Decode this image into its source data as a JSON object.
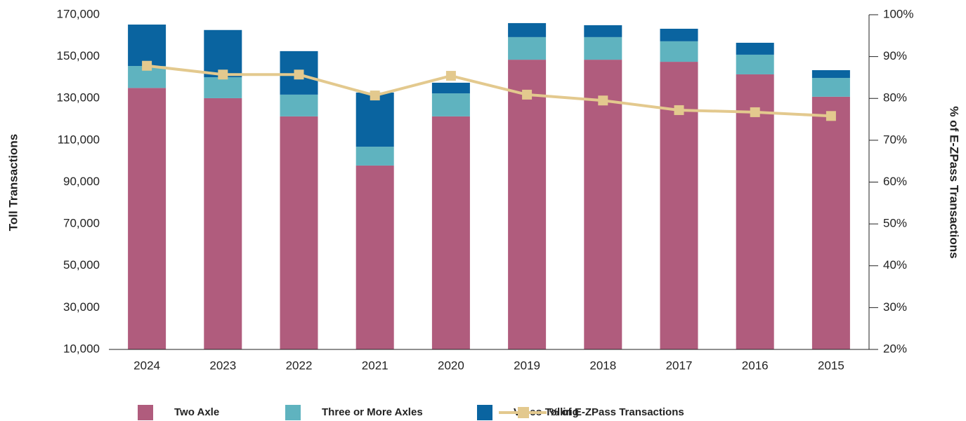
{
  "chart_data": {
    "type": "stacked-bar-line",
    "y_label": "Toll Transactions",
    "y2_label": "% of E-ZPass Transactions",
    "categories": [
      "2024",
      "2023",
      "2022",
      "2021",
      "2020",
      "2019",
      "2018",
      "2017",
      "2016",
      "2015"
    ],
    "series": [
      {
        "name": "Two Axle",
        "color": "#b05c7d",
        "type": "bar",
        "values": [
          135000,
          130100,
          121400,
          97900,
          121400,
          148500,
          148500,
          147500,
          141500,
          130800
        ]
      },
      {
        "name": "Three or More Axles",
        "color": "#5fb3bf",
        "type": "bar",
        "values": [
          10500,
          10000,
          10400,
          9000,
          11000,
          10800,
          10800,
          9800,
          9400,
          9000
        ]
      },
      {
        "name": "Video Tolling",
        "color": "#0a64a0",
        "type": "bar",
        "values": [
          19800,
          22600,
          20800,
          25900,
          5100,
          6700,
          5700,
          6000,
          5700,
          3700
        ]
      },
      {
        "name": "% of E-ZPass Transactions",
        "color": "#e3c98e",
        "type": "line",
        "axis": "y2",
        "values": [
          87.8,
          85.7,
          85.7,
          80.7,
          85.4,
          80.9,
          79.5,
          77.2,
          76.7,
          75.8
        ]
      }
    ],
    "ylim": [
      10000,
      170000
    ],
    "yticks": [
      {
        "value": 10000,
        "label": "10,000"
      },
      {
        "value": 30000,
        "label": "30,000"
      },
      {
        "value": 50000,
        "label": "50,000"
      },
      {
        "value": 70000,
        "label": "70,000"
      },
      {
        "value": 90000,
        "label": "90,000"
      },
      {
        "value": 110000,
        "label": "110,000"
      },
      {
        "value": 130000,
        "label": "130,000"
      },
      {
        "value": 150000,
        "label": "150,000"
      },
      {
        "value": 170000,
        "label": "170,000"
      }
    ],
    "y2lim": [
      20,
      100
    ],
    "y2ticks": [
      {
        "value": 20,
        "label": "20%"
      },
      {
        "value": 30,
        "label": "30%"
      },
      {
        "value": 40,
        "label": "40%"
      },
      {
        "value": 50,
        "label": "50%"
      },
      {
        "value": 60,
        "label": "60%"
      },
      {
        "value": 70,
        "label": "70%"
      },
      {
        "value": 80,
        "label": "80%"
      },
      {
        "value": 90,
        "label": "90%"
      },
      {
        "value": 100,
        "label": "100%"
      }
    ],
    "legend": "bottom"
  }
}
